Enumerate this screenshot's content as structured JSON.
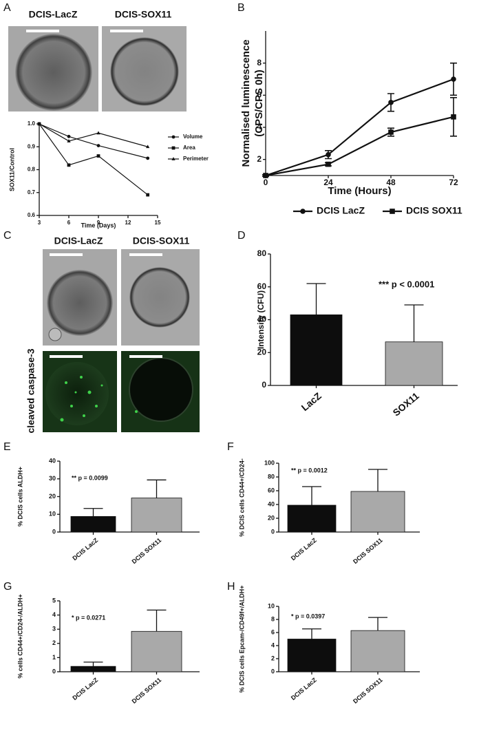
{
  "images": [
    {
      "panel": "A",
      "labels": [
        "DCIS-LacZ",
        "DCIS-SOX11"
      ]
    },
    {
      "panel": "C",
      "labels": [
        "DCIS-LacZ",
        "DCIS-SOX11"
      ],
      "side_label": "cleaved caspase-3"
    }
  ],
  "chart_data": [
    {
      "type": "line",
      "xlabel": "Time (Days)",
      "ylabel": [
        "SOX11/Control"
      ],
      "x": [
        3,
        6,
        9,
        14
      ],
      "xlim": [
        3,
        15
      ],
      "xticks": [
        3,
        6,
        9,
        12,
        15
      ],
      "ylim": [
        0.6,
        1
      ],
      "yticks": [
        0.6,
        0.7,
        0.8,
        0.9,
        {
          "value": 1,
          "label": "1.0"
        }
      ],
      "series": [
        {
          "name": "Volume",
          "color": "#111111",
          "marker": "circle",
          "values": [
            1,
            0.945,
            0.905,
            0.85
          ]
        },
        {
          "name": "Area",
          "color": "#111111",
          "marker": "square",
          "values": [
            1,
            0.82,
            0.86,
            0.69
          ]
        },
        {
          "name": "Perimeter",
          "color": "#111111",
          "marker": "triangle",
          "values": [
            1,
            0.925,
            0.96,
            0.9
          ]
        }
      ]
    },
    {
      "type": "line",
      "panel": "B",
      "xlabel": "Time (Hours)",
      "ylabel": [
        "Normalised luminescence",
        "(CPS/CPS 0h)"
      ],
      "x": [
        0,
        24,
        48,
        72
      ],
      "xlim": [
        0,
        72
      ],
      "xticks": [
        0,
        24,
        48,
        72
      ],
      "ylim": [
        1,
        10
      ],
      "yticks": [
        2,
        4,
        6,
        8
      ],
      "series": [
        {
          "name": "DCIS LacZ",
          "color": "#111111",
          "marker": "circle",
          "values": [
            1,
            2.3,
            5.55,
            7.0
          ],
          "errors": [
            0.05,
            0.25,
            0.55,
            1.0
          ]
        },
        {
          "name": "DCIS SOX11",
          "color": "#111111",
          "marker": "square",
          "values": [
            1,
            1.7,
            3.7,
            4.65
          ],
          "errors": [
            0.05,
            0.1,
            0.25,
            1.2
          ]
        }
      ]
    },
    {
      "type": "bar",
      "panel": "D",
      "ylabel": [
        "Intensity (CFU)"
      ],
      "annotation": "*** p < 0.0001",
      "categories": [
        "LacZ",
        "SOX11"
      ],
      "values": [
        43,
        26.5
      ],
      "errors": [
        19,
        22.5
      ],
      "colors": [
        "#0d0d0d",
        "#a9a9a9"
      ],
      "ylim": [
        0,
        80
      ],
      "yticks": [
        0,
        20,
        40,
        60,
        80
      ]
    },
    {
      "type": "bar",
      "panel": "E",
      "ylabel": [
        "% DCIS cells ALDH+"
      ],
      "annotation": "** p = 0.0099",
      "categories": [
        "DCIS LacZ",
        "DCIS SOX11"
      ],
      "values": [
        8.8,
        19.2
      ],
      "errors": [
        4.5,
        10.2
      ],
      "colors": [
        "#0d0d0d",
        "#a9a9a9"
      ],
      "ylim": [
        0,
        40
      ],
      "yticks": [
        0,
        10,
        20,
        30,
        40
      ]
    },
    {
      "type": "bar",
      "panel": "F",
      "ylabel": [
        "% DCIS cells CD44+/CD24-"
      ],
      "annotation": "** p = 0.0012",
      "categories": [
        "DCIS LacZ",
        "DCIS SOX11"
      ],
      "values": [
        39,
        59
      ],
      "errors": [
        27,
        32
      ],
      "colors": [
        "#0d0d0d",
        "#a9a9a9"
      ],
      "ylim": [
        0,
        100
      ],
      "yticks": [
        0,
        20,
        40,
        60,
        80,
        100
      ]
    },
    {
      "type": "bar",
      "panel": "G",
      "ylabel": [
        "% cells CD44+/CD24-/ALDH+"
      ],
      "annotation": "* p = 0.0271",
      "categories": [
        "DCIS LacZ",
        "DCIS SOX11"
      ],
      "values": [
        0.38,
        2.85
      ],
      "errors": [
        0.3,
        1.5
      ],
      "colors": [
        "#0d0d0d",
        "#a9a9a9"
      ],
      "ylim": [
        0,
        5
      ],
      "yticks": [
        0,
        1,
        2,
        3,
        4,
        5
      ]
    },
    {
      "type": "bar",
      "panel": "H",
      "ylabel": [
        "% DCIS cells Epcam-/CD49f+/ALDH+"
      ],
      "annotation": "* p = 0.0397",
      "categories": [
        "DCIS LacZ",
        "DCIS SOX11"
      ],
      "values": [
        5.0,
        6.3
      ],
      "errors": [
        1.55,
        2.0
      ],
      "colors": [
        "#0d0d0d",
        "#a9a9a9"
      ],
      "ylim": [
        0,
        10
      ],
      "yticks": [
        0,
        2,
        4,
        6,
        8,
        10
      ]
    }
  ]
}
